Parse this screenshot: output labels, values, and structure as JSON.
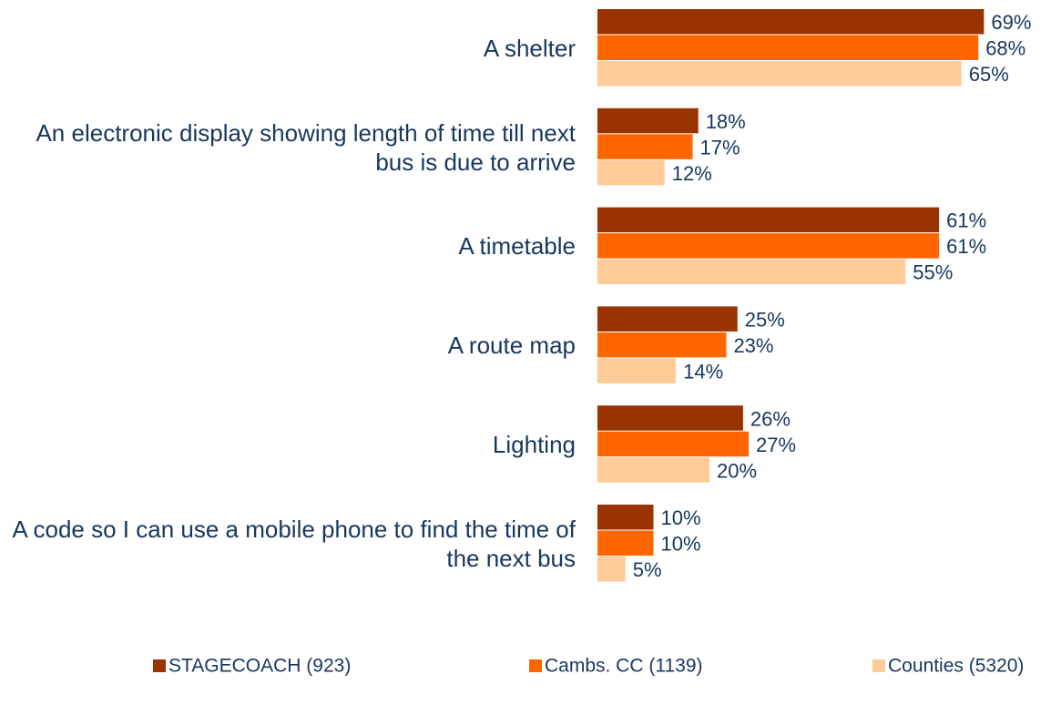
{
  "chart_data": {
    "type": "bar",
    "orientation": "horizontal",
    "categories": [
      "A shelter",
      "An electronic display showing length of time till next bus is due to arrive",
      "A timetable",
      "A route map",
      "Lighting",
      "A code so I can use a mobile phone to find the time of the next bus"
    ],
    "series": [
      {
        "name": "STAGECOACH (923)",
        "color": "#993300",
        "values": [
          69,
          18,
          61,
          25,
          26,
          10
        ],
        "value_labels": [
          "69%",
          "18%",
          "61%",
          "25%",
          "26%",
          "10%"
        ]
      },
      {
        "name": "Cambs. CC (1139)",
        "color": "#ff6600",
        "values": [
          68,
          17,
          61,
          23,
          27,
          10
        ],
        "value_labels": [
          "68%",
          "17%",
          "61%",
          "23%",
          "27%",
          "10%"
        ]
      },
      {
        "name": "Counties (5320)",
        "color": "#ffcc99",
        "values": [
          65,
          12,
          55,
          14,
          20,
          5
        ],
        "value_labels": [
          "65%",
          "12%",
          "55%",
          "14%",
          "20%",
          "5%"
        ]
      }
    ],
    "xlim": [
      0,
      100
    ],
    "legend": "bottom"
  }
}
